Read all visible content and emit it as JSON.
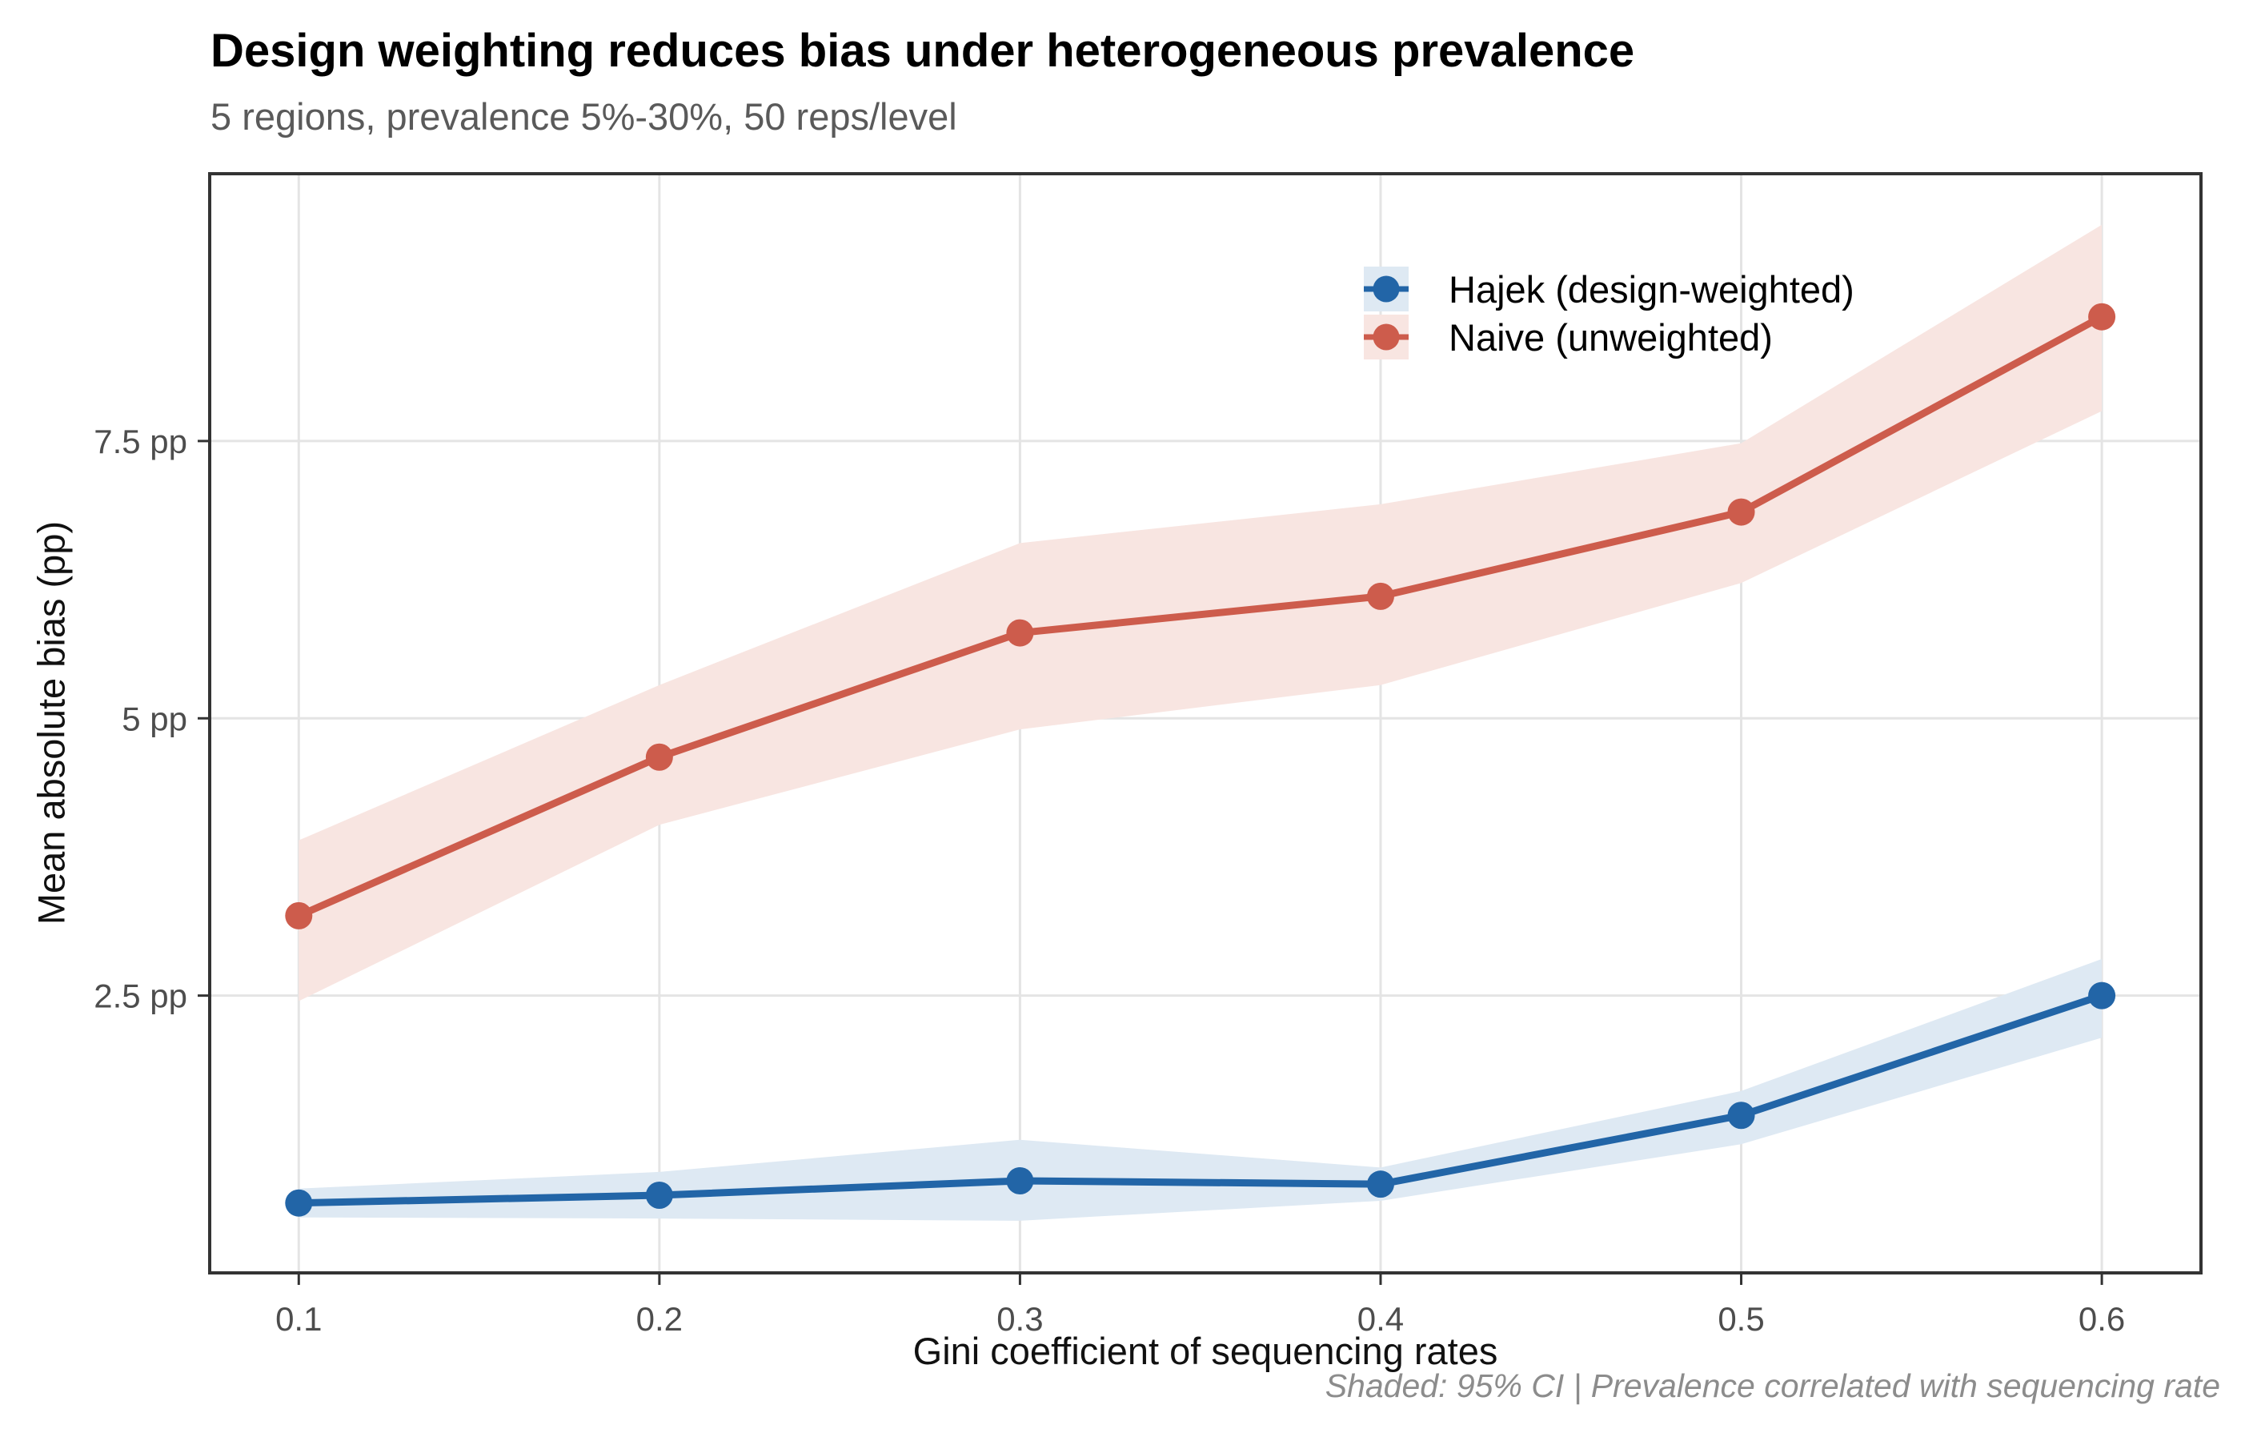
{
  "header": {
    "title": "Design weighting reduces bias under heterogeneous prevalence",
    "subtitle": "5 regions, prevalence 5%-30%, 50 reps/level"
  },
  "caption": "Shaded: 95% CI | Prevalence correlated with sequencing rate",
  "chart_data": {
    "type": "line",
    "title": "Design weighting reduces bias under heterogeneous prevalence",
    "subtitle": "5 regions, prevalence 5%-30%, 50 reps/level",
    "xlabel": "Gini coefficient of sequencing rates",
    "ylabel": "Mean absolute bias (pp)",
    "x": [
      0.1,
      0.2,
      0.3,
      0.4,
      0.5,
      0.6
    ],
    "series": [
      {
        "name": "Hajek (design-weighted)",
        "color": "#2265a7",
        "ribbon": "#dee9f3",
        "values": [
          0.63,
          0.7,
          0.83,
          0.8,
          1.42,
          2.5
        ],
        "ci_low": [
          0.5,
          0.49,
          0.47,
          0.65,
          1.16,
          2.12
        ],
        "ci_high": [
          0.76,
          0.91,
          1.2,
          0.95,
          1.64,
          2.83
        ]
      },
      {
        "name": "Naive (unweighted)",
        "color": "#cd5c4c",
        "ribbon": "#f8e5e1",
        "values": [
          3.22,
          4.65,
          5.77,
          6.1,
          6.86,
          8.62
        ],
        "ci_low": [
          2.45,
          4.04,
          4.9,
          5.3,
          6.22,
          7.77
        ],
        "ci_high": [
          3.9,
          5.3,
          6.58,
          6.93,
          7.48,
          9.45
        ]
      }
    ],
    "x_ticks": {
      "values": [
        0.1,
        0.2,
        0.3,
        0.4,
        0.5,
        0.6
      ],
      "labels": [
        "0.1",
        "0.2",
        "0.3",
        "0.4",
        "0.5",
        "0.6"
      ]
    },
    "y_ticks": {
      "values": [
        2.5,
        5,
        7.5
      ],
      "labels": [
        "2.5 pp",
        "5 pp",
        "7.5 pp"
      ]
    },
    "x_domain": [
      0.0753,
      0.6275
    ],
    "y_domain": [
      0,
      9.91
    ],
    "grid": true,
    "legend_position": "inside top-right",
    "shaded_band_meaning": "95% CI",
    "style": {
      "grid_color": "#e4e4e4",
      "border_color": "#333333",
      "tick_text_color": "#4d4d4d"
    }
  }
}
